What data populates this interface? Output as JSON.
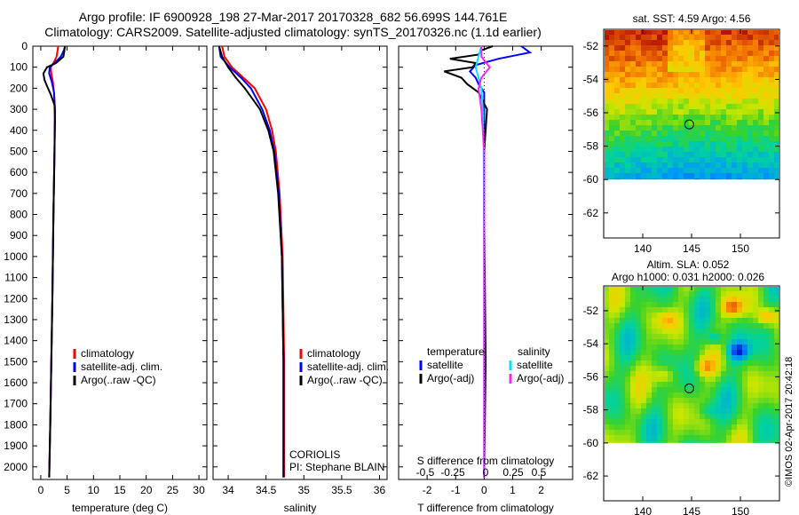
{
  "header": {
    "title_line1": "Argo profile: IF 6900928_198 27-Mar-2017 20170328_682 56.699S 144.761E",
    "title_line2": "Climatology: CARS2009. Satellite-adjusted climatology: synTS_20170326.nc (1.1d earlier)"
  },
  "colors": {
    "climatology": "#ff0000",
    "satellite": "#0000ff",
    "argo": "#000000",
    "satellite_sal": "#00e5ff",
    "argo_sal": "#ff22ff"
  },
  "chart_data": [
    {
      "type": "line",
      "name": "temperature-panel",
      "xlabel": "temperature (deg C)",
      "ylabel": "",
      "xlim": [
        -1.5,
        31.5
      ],
      "ylim": [
        2060,
        0
      ],
      "xticks": [
        0,
        5,
        10,
        15,
        20,
        25,
        30
      ],
      "yticks": [
        0,
        100,
        200,
        300,
        400,
        500,
        600,
        700,
        800,
        900,
        1000,
        1100,
        1200,
        1300,
        1400,
        1500,
        1600,
        1700,
        1800,
        1900,
        2000
      ],
      "legend": [
        "climatology",
        "satellite-adj. clim.",
        "Argo(..raw -QC)"
      ],
      "series": [
        {
          "name": "climatology",
          "color": "#ff0000",
          "y": [
            0,
            20,
            50,
            80,
            100,
            130,
            170,
            220,
            300,
            500,
            800,
            1000,
            1200,
            1500,
            1800,
            2050
          ],
          "x": [
            3.3,
            3.2,
            3.0,
            2.4,
            1.9,
            2.0,
            2.3,
            2.5,
            2.7,
            2.6,
            2.4,
            2.3,
            2.2,
            2.0,
            1.8,
            1.6
          ]
        },
        {
          "name": "satellite-adj. clim.",
          "color": "#0000ff",
          "y": [
            0,
            20,
            50,
            80,
            100,
            130,
            170,
            220,
            300,
            500,
            800,
            1000,
            1200,
            1500,
            1800,
            2050
          ],
          "x": [
            4.6,
            4.4,
            3.8,
            2.6,
            1.7,
            1.6,
            2.1,
            2.5,
            2.7,
            2.6,
            2.4,
            2.3,
            2.2,
            2.0,
            1.8,
            1.6
          ]
        },
        {
          "name": "Argo(..raw -QC)",
          "color": "#000000",
          "y": [
            0,
            20,
            50,
            80,
            100,
            130,
            160,
            190,
            230,
            280,
            350,
            500,
            800,
            1000,
            1200,
            1500,
            1800,
            2050
          ],
          "x": [
            4.6,
            4.5,
            4.3,
            2.9,
            1.2,
            0.5,
            0.7,
            1.2,
            1.9,
            2.6,
            2.7,
            2.6,
            2.4,
            2.3,
            2.2,
            2.0,
            1.8,
            1.6
          ]
        }
      ]
    },
    {
      "type": "line",
      "name": "salinity-panel",
      "xlabel": "salinity",
      "ylabel": "",
      "xlim": [
        33.8,
        36.1
      ],
      "ylim": [
        2060,
        0
      ],
      "xticks": [
        34,
        34.5,
        35,
        35.5,
        36
      ],
      "legend": [
        "climatology",
        "satellite-adj. clim.",
        "Argo(..raw -QC)"
      ],
      "annotations": [
        "CORIOLIS",
        "PI: Stephane BLAIN"
      ],
      "series": [
        {
          "name": "climatology",
          "color": "#ff0000",
          "y": [
            0,
            50,
            100,
            150,
            200,
            300,
            400,
            500,
            700,
            1000,
            1500,
            2050
          ],
          "x": [
            33.92,
            33.95,
            34.05,
            34.2,
            34.35,
            34.5,
            34.58,
            34.63,
            34.68,
            34.72,
            34.74,
            34.74
          ]
        },
        {
          "name": "satellite-adj. clim.",
          "color": "#0000ff",
          "y": [
            0,
            50,
            100,
            150,
            200,
            300,
            400,
            500,
            700,
            1000,
            1500,
            2050
          ],
          "x": [
            33.88,
            33.9,
            34.02,
            34.17,
            34.3,
            34.45,
            34.55,
            34.61,
            34.67,
            34.71,
            34.73,
            34.73
          ]
        },
        {
          "name": "Argo(..raw -QC)",
          "color": "#000000",
          "y": [
            0,
            50,
            100,
            150,
            200,
            300,
            400,
            500,
            700,
            1000,
            1500,
            2050
          ],
          "x": [
            33.88,
            33.92,
            34.0,
            34.1,
            34.22,
            34.42,
            34.53,
            34.6,
            34.66,
            34.71,
            34.73,
            34.73
          ]
        }
      ]
    },
    {
      "type": "line",
      "name": "difference-panel",
      "xlabel": "T difference from climatology",
      "xlabel_top": "S difference from climatology",
      "xlim": [
        -3,
        3.1
      ],
      "ylim": [
        2060,
        0
      ],
      "xticks": [
        -2,
        -1,
        0,
        1,
        2
      ],
      "xticks_top": [
        "-0.5",
        "-0.25",
        "0",
        "0.25",
        "0.5"
      ],
      "legend_temperature": {
        "title": "temperature",
        "items": [
          "satellite",
          "Argo(-adj)"
        ]
      },
      "legend_salinity": {
        "title": "salinity",
        "items": [
          "satellite",
          "Argo(-adj)"
        ]
      },
      "series": [
        {
          "name": "T satellite",
          "color": "#0000ff",
          "y": [
            0,
            30,
            60,
            90,
            120,
            150,
            180,
            220,
            300,
            500,
            800,
            1500,
            2050
          ],
          "x": [
            1.3,
            1.6,
            0.5,
            -0.3,
            -0.5,
            -0.3,
            -0.2,
            0.0,
            0.0,
            0.0,
            0.0,
            0.0,
            0.0
          ]
        },
        {
          "name": "T Argo(-adj)",
          "color": "#000000",
          "y": [
            0,
            20,
            40,
            60,
            80,
            100,
            120,
            150,
            180,
            220,
            300,
            500,
            800,
            1500,
            2050
          ],
          "x": [
            0.3,
            -0.1,
            -0.2,
            -1.2,
            -0.3,
            -0.4,
            -1.4,
            -0.8,
            -0.6,
            -0.2,
            0.1,
            0.0,
            0.0,
            0.05,
            0.0
          ]
        },
        {
          "name": "S satellite",
          "color": "#00e5ff",
          "y": [
            0,
            50,
            100,
            150,
            200,
            300,
            500,
            1000,
            2050
          ],
          "x": [
            -0.1,
            -0.2,
            -0.3,
            -0.2,
            -0.1,
            -0.05,
            -0.02,
            0.0,
            0.0
          ]
        },
        {
          "name": "S Argo(-adj)",
          "color": "#ff22ff",
          "y": [
            0,
            50,
            100,
            150,
            200,
            300,
            500,
            1000,
            2050
          ],
          "x": [
            -0.1,
            -0.1,
            0.2,
            -0.1,
            -0.2,
            -0.1,
            0.0,
            0.0,
            0.0
          ]
        }
      ]
    },
    {
      "type": "heatmap",
      "name": "sst-map",
      "title": "sat. SST: 4.59 Argo: 4.56",
      "xlim": [
        136,
        154
      ],
      "ylim": [
        -63.5,
        -51
      ],
      "xticks": [
        140,
        145,
        150
      ],
      "yticks": [
        -52,
        -54,
        -56,
        -58,
        -60,
        -62
      ],
      "marker": {
        "lon": 144.761,
        "lat": -56.699
      },
      "data_lat_min": -60
    },
    {
      "type": "heatmap",
      "name": "sla-map",
      "title": "Altim. SLA: 0.052",
      "subtitle": "Argo h1000: 0.031 h2000: 0.026",
      "xlim": [
        136,
        154
      ],
      "ylim": [
        -63.5,
        -50.5
      ],
      "xticks": [
        140,
        145,
        150
      ],
      "yticks": [
        -52,
        -54,
        -56,
        -58,
        -60,
        -62
      ],
      "marker": {
        "lon": 144.761,
        "lat": -56.699
      },
      "data_lat_min": -60
    }
  ],
  "watermark": "©IMOS 02-Apr-2017 20:42:18"
}
